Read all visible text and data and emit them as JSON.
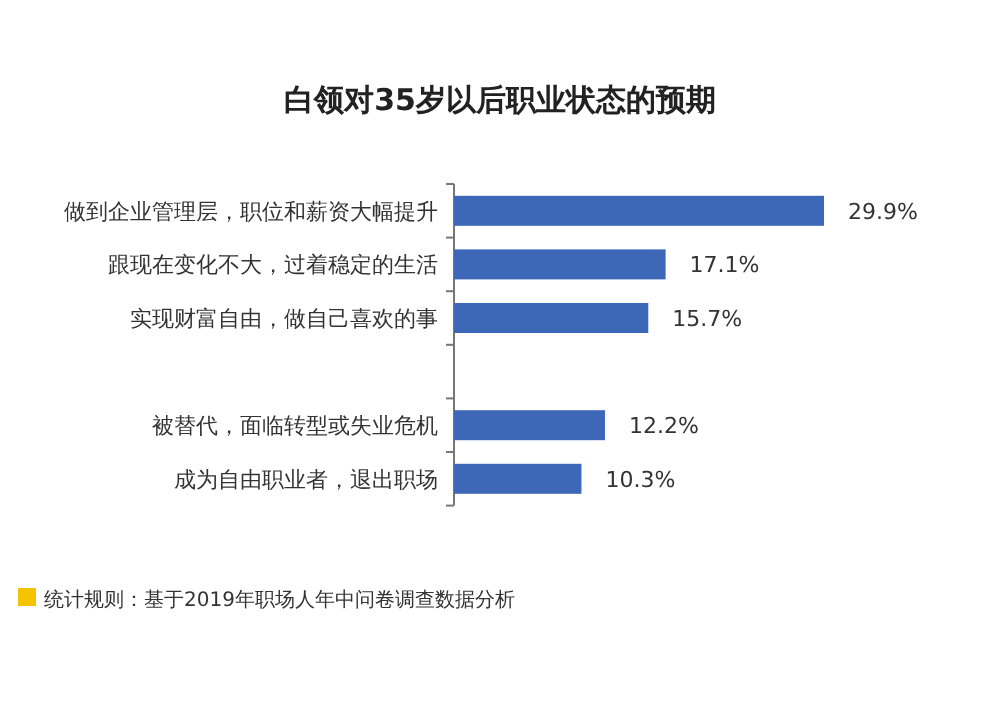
{
  "chart_data": {
    "type": "bar",
    "orientation": "horizontal",
    "title": "白领对35岁以后职业状态的预期",
    "categories": [
      "做到企业管理层，职位和薪资大幅提升",
      "跟现在变化不大，过着稳定的生活",
      "实现财富自由，做自己喜欢的事",
      null,
      "被替代，面临转型或失业危机",
      "成为自由职业者，退出职场"
    ],
    "values": [
      29.9,
      17.1,
      15.7,
      null,
      12.2,
      10.3
    ],
    "value_labels": [
      "29.9%",
      "17.1%",
      "15.7%",
      null,
      "12.2%",
      "10.3%"
    ],
    "color": "#3d68b8",
    "annotations": [
      "统计规则：基于2019年职场人年中问卷调查数据分析"
    ]
  }
}
